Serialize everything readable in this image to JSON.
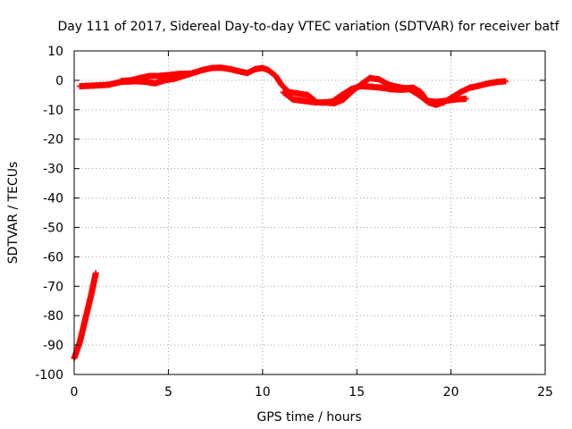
{
  "chart_data": {
    "type": "scatter",
    "title": "Day 111 of 2017, Sidereal Day-to-day VTEC variation (SDTVAR) for receiver batf",
    "xlabel": "GPS time / hours",
    "ylabel": "SDTVAR / TECUs",
    "xlim": [
      0,
      25
    ],
    "ylim": [
      -100,
      10
    ],
    "x_ticks": [
      "0",
      "5",
      "10",
      "15",
      "20",
      "25"
    ],
    "y_ticks": [
      "10",
      "0",
      "-10",
      "-20",
      "-30",
      "-40",
      "-50",
      "-60",
      "-70",
      "-80",
      "-90",
      "-100"
    ],
    "grid": true,
    "legend": "none",
    "series": [
      {
        "color": "#ff0000",
        "marker": "plus",
        "segments": [
          [
            [
              0.0,
              -94.5
            ],
            [
              0.3,
              -89
            ],
            [
              0.6,
              -81
            ],
            [
              0.9,
              -73
            ],
            [
              1.15,
              -65.5
            ]
          ],
          [
            [
              0.3,
              -2.0
            ],
            [
              1.0,
              -1.8
            ],
            [
              1.8,
              -1.5
            ],
            [
              2.5,
              -0.5
            ],
            [
              3.3,
              -0.3
            ],
            [
              3.8,
              -0.5
            ],
            [
              4.3,
              -1.0
            ],
            [
              4.8,
              0.0
            ],
            [
              5.3,
              0.5
            ],
            [
              5.8,
              1.5
            ],
            [
              6.3,
              2.5
            ],
            [
              6.8,
              3.5
            ],
            [
              7.3,
              4.2
            ],
            [
              7.8,
              4.3
            ],
            [
              8.3,
              3.8
            ],
            [
              8.8,
              3.0
            ],
            [
              9.2,
              2.5
            ],
            [
              9.6,
              3.8
            ],
            [
              10.0,
              4.2
            ],
            [
              10.3,
              3.5
            ],
            [
              10.7,
              1.5
            ],
            [
              11.0,
              -1.5
            ],
            [
              11.4,
              -4.0
            ],
            [
              11.9,
              -4.5
            ],
            [
              12.4,
              -5.0
            ],
            [
              12.8,
              -7.0
            ]
          ],
          [
            [
              2.5,
              -0.2
            ],
            [
              3.0,
              0.0
            ],
            [
              3.5,
              0.8
            ],
            [
              4.0,
              1.5
            ],
            [
              4.5,
              1.5
            ],
            [
              5.0,
              1.8
            ],
            [
              5.6,
              2.2
            ],
            [
              6.2,
              2.3
            ]
          ],
          [
            [
              11.1,
              -4.0
            ],
            [
              11.6,
              -6.5
            ],
            [
              12.2,
              -7.0
            ],
            [
              12.8,
              -7.5
            ],
            [
              13.3,
              -7.5
            ],
            [
              13.8,
              -7.8
            ],
            [
              14.3,
              -6.5
            ],
            [
              14.8,
              -3.5
            ],
            [
              15.3,
              -1.0
            ],
            [
              15.7,
              0.8
            ],
            [
              16.2,
              0.3
            ],
            [
              16.7,
              -1.5
            ],
            [
              17.2,
              -2.3
            ],
            [
              17.6,
              -2.7
            ],
            [
              18.0,
              -2.5
            ],
            [
              18.4,
              -4.0
            ],
            [
              18.8,
              -7.5
            ],
            [
              19.2,
              -8.3
            ],
            [
              19.6,
              -7.5
            ],
            [
              20.0,
              -6.0
            ],
            [
              20.5,
              -4.0
            ],
            [
              21.0,
              -2.5
            ],
            [
              21.5,
              -1.8
            ],
            [
              22.0,
              -1.0
            ],
            [
              22.5,
              -0.5
            ],
            [
              22.9,
              -0.3
            ]
          ],
          [
            [
              13.2,
              -7.6
            ],
            [
              13.7,
              -7.2
            ],
            [
              14.2,
              -5.0
            ],
            [
              14.7,
              -3.0
            ],
            [
              15.2,
              -2.0
            ],
            [
              15.8,
              -2.2
            ],
            [
              16.3,
              -2.5
            ],
            [
              16.8,
              -3.0
            ],
            [
              17.3,
              -3.2
            ],
            [
              17.8,
              -3.0
            ],
            [
              18.3,
              -5.0
            ],
            [
              18.7,
              -7.0
            ],
            [
              19.2,
              -7.3
            ],
            [
              19.7,
              -7.0
            ],
            [
              20.2,
              -6.5
            ],
            [
              20.7,
              -6.3
            ],
            [
              20.8,
              -6.2
            ]
          ]
        ]
      }
    ]
  }
}
